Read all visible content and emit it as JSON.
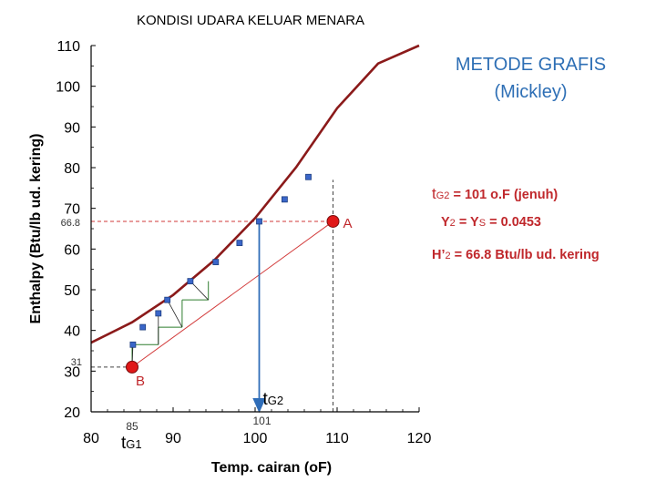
{
  "page_title": "KONDISI UDARA KELUAR MENARA",
  "method": {
    "title": "METODE GRAFIS",
    "subtitle": "(Mickley)"
  },
  "notes": {
    "tg2": {
      "main": "t",
      "sub": "G2",
      "rest": " = 101 o.F (jenuh)"
    },
    "y2": {
      "main": "Y",
      "sub": "2",
      "mid": " = Y",
      "sub2": "S",
      "rest": " = 0.0453"
    },
    "h2": {
      "main": "H’",
      "sub": "2",
      "rest": " = 66.8 Btu/lb ud. kering"
    }
  },
  "annotations": {
    "point_a": "A",
    "point_b": "B",
    "h_a": "66.8",
    "h_b": "31",
    "tg1_value": "85",
    "tg1_main": "t",
    "tg1_sub": "G1",
    "tg2_value": "101",
    "tg2_main": "t",
    "tg2_sub": "G2"
  },
  "colors": {
    "saturation_curve": "#8b1a1a",
    "operating_line": "#d23a3a",
    "points": "#3a66c9",
    "markers": "#e01818",
    "arrow": "#2f6db8",
    "steps": "#2e7d2e",
    "notes": "#c0282c",
    "method_title": "#2e6fb5"
  },
  "chart_data": {
    "type": "line",
    "xlabel": "Temp. cairan (oF)",
    "ylabel": "Enthalpy (Btu/lb ud. kering)",
    "xlim": [
      80,
      120
    ],
    "ylim": [
      20,
      110
    ],
    "xticks": [
      80,
      90,
      100,
      110,
      120
    ],
    "yticks": [
      20,
      30,
      40,
      50,
      60,
      70,
      80,
      90,
      100,
      110
    ],
    "grid": false,
    "series": [
      {
        "role": "saturation_curve",
        "x": [
          80,
          85,
          90,
          95,
          100,
          105,
          110,
          115,
          120
        ],
        "y": [
          37,
          42,
          48.7,
          57.2,
          67.6,
          80.1,
          94.6,
          105.6,
          114.5
        ]
      },
      {
        "role": "operating_line",
        "x": [
          85,
          109.5
        ],
        "y": [
          31,
          66.8
        ]
      },
      {
        "role": "curve_points",
        "x": [
          85.1,
          86.3,
          88.2,
          89.3,
          92.1,
          95.2,
          98.1,
          100.5,
          103.6,
          106.5
        ],
        "y": [
          36.5,
          40.8,
          44.2,
          47.5,
          52.1,
          56.8,
          61.5,
          66.8,
          72.2,
          77.7
        ]
      }
    ],
    "points": [
      {
        "label": "A",
        "x": 109.5,
        "y": 66.8
      },
      {
        "label": "B",
        "x": 85,
        "y": 31
      }
    ],
    "steps": [
      [
        85,
        31
      ],
      [
        85,
        36.5
      ],
      [
        88.2,
        36.5
      ],
      [
        88.2,
        40.8
      ],
      [
        91.1,
        40.8
      ],
      [
        91.1,
        47.5
      ],
      [
        94.3,
        47.5
      ],
      [
        94.3,
        52.1
      ]
    ],
    "arrow": {
      "x": 100.5,
      "y_from": 66.8,
      "y_to": 20
    },
    "dashed_guides": [
      {
        "from": [
          80,
          66.8
        ],
        "to": [
          109.5,
          66.8
        ]
      },
      {
        "from": [
          80,
          31
        ],
        "to": [
          85,
          31
        ]
      },
      {
        "from": [
          109.5,
          20
        ],
        "to": [
          109.5,
          77
        ]
      }
    ]
  }
}
